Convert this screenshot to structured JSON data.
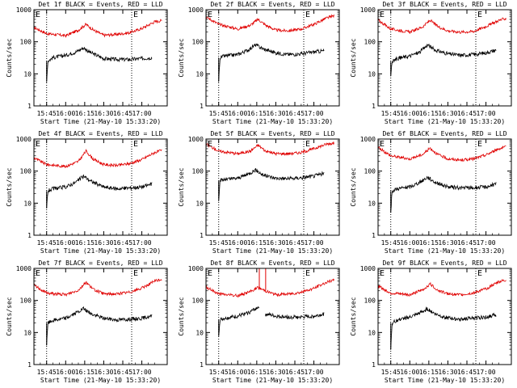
{
  "figure": {
    "colors": {
      "events": "#000000",
      "lld": "#e00000",
      "axis": "#000000",
      "guide": "#000000"
    }
  },
  "chart_data": [
    {
      "type": "line",
      "title": "Det 1f BLACK = Events, RED = LLD",
      "xlabel": "Start Time (21-May-10 15:33:20)",
      "ylabel": "Counts/sec",
      "y_log": true,
      "ylim": [
        1,
        1000
      ],
      "y_ticks": [
        "1",
        "10",
        "100",
        "1000"
      ],
      "x_range": [
        "15:35",
        "17:20"
      ],
      "x_ticks": [
        "15:45",
        "16:00",
        "16:15",
        "16:30",
        "16:45",
        "17:00"
      ],
      "markers": [
        {
          "label": "E",
          "at": "15:35"
        },
        {
          "label": "E",
          "at": "16:52"
        }
      ],
      "guides": [
        "15:45",
        "16:52"
      ],
      "series": [
        {
          "role": "lld",
          "x": [
            "15:35",
            "15:45",
            "16:00",
            "16:10",
            "16:16",
            "16:22",
            "16:30",
            "16:40",
            "16:50",
            "17:00",
            "17:10",
            "17:16"
          ],
          "values": [
            280,
            180,
            155,
            230,
            350,
            230,
            160,
            170,
            190,
            260,
            420,
            460
          ]
        },
        {
          "role": "events",
          "x": [
            "15:45",
            "15:46",
            "15:50",
            "16:00",
            "16:08",
            "16:14",
            "16:20",
            "16:30",
            "16:40",
            "16:50",
            "17:00",
            "17:08"
          ],
          "values": [
            6,
            25,
            32,
            38,
            48,
            65,
            45,
            30,
            28,
            28,
            30,
            32
          ]
        }
      ]
    },
    {
      "type": "line",
      "title": "Det 2f BLACK = Events, RED = LLD",
      "xlabel": "Start Time (21-May-10 15:33:20)",
      "ylabel": "Counts/sec",
      "y_log": true,
      "ylim": [
        1,
        1000
      ],
      "y_ticks": [
        "1",
        "10",
        "100",
        "1000"
      ],
      "x_range": [
        "15:35",
        "17:20"
      ],
      "x_ticks": [
        "15:45",
        "16:00",
        "16:15",
        "16:30",
        "16:45",
        "17:00"
      ],
      "markers": [
        {
          "label": "E",
          "at": "15:35"
        },
        {
          "label": "E",
          "at": "16:52"
        }
      ],
      "guides": [
        "15:45",
        "16:52"
      ],
      "series": [
        {
          "role": "lld",
          "x": [
            "15:35",
            "15:45",
            "16:00",
            "16:10",
            "16:16",
            "16:22",
            "16:30",
            "16:40",
            "16:50",
            "17:00",
            "17:10",
            "17:16"
          ],
          "values": [
            600,
            350,
            250,
            330,
            500,
            330,
            230,
            220,
            250,
            350,
            550,
            650
          ]
        },
        {
          "role": "events",
          "x": [
            "15:45",
            "15:46",
            "15:50",
            "16:00",
            "16:08",
            "16:14",
            "16:20",
            "16:30",
            "16:40",
            "16:50",
            "17:00",
            "17:08"
          ],
          "values": [
            6,
            32,
            36,
            40,
            55,
            80,
            60,
            45,
            40,
            42,
            48,
            52
          ]
        }
      ]
    },
    {
      "type": "line",
      "title": "Det 3f BLACK = Events, RED = LLD",
      "xlabel": "Start Time (21-May-10 15:33:20)",
      "ylabel": "Counts/sec",
      "y_log": true,
      "ylim": [
        1,
        1000
      ],
      "y_ticks": [
        "1",
        "10",
        "100",
        "1000"
      ],
      "x_range": [
        "15:35",
        "17:20"
      ],
      "x_ticks": [
        "15:45",
        "16:00",
        "16:15",
        "16:30",
        "16:45",
        "17:00"
      ],
      "markers": [
        {
          "label": "E",
          "at": "15:35"
        },
        {
          "label": "E",
          "at": "16:52"
        }
      ],
      "guides": [
        "15:45",
        "16:52"
      ],
      "series": [
        {
          "role": "lld",
          "x": [
            "15:35",
            "15:45",
            "16:00",
            "16:10",
            "16:16",
            "16:22",
            "16:30",
            "16:40",
            "16:50",
            "17:00",
            "17:10",
            "17:16"
          ],
          "values": [
            480,
            250,
            200,
            290,
            470,
            300,
            220,
            200,
            210,
            300,
            460,
            540
          ]
        },
        {
          "role": "events",
          "x": [
            "15:45",
            "15:46",
            "15:50",
            "16:00",
            "16:08",
            "16:14",
            "16:20",
            "16:30",
            "16:40",
            "16:50",
            "17:00",
            "17:08"
          ],
          "values": [
            9,
            24,
            30,
            36,
            48,
            80,
            55,
            42,
            38,
            40,
            45,
            55
          ]
        }
      ]
    },
    {
      "type": "line",
      "title": "Det 4f BLACK = Events, RED = LLD",
      "xlabel": "Start Time (21-May-10 15:33:20)",
      "ylabel": "Counts/sec",
      "y_log": true,
      "ylim": [
        1,
        1000
      ],
      "y_ticks": [
        "1",
        "10",
        "100",
        "1000"
      ],
      "x_range": [
        "15:35",
        "17:20"
      ],
      "x_ticks": [
        "15:45",
        "16:00",
        "16:15",
        "16:30",
        "16:45",
        "17:00"
      ],
      "markers": [
        {
          "label": "E",
          "at": "15:35"
        },
        {
          "label": "E",
          "at": "16:52"
        }
      ],
      "guides": [
        "15:45",
        "16:52"
      ],
      "series": [
        {
          "role": "lld",
          "x": [
            "15:35",
            "15:45",
            "16:00",
            "16:10",
            "16:16",
            "16:22",
            "16:30",
            "16:40",
            "16:50",
            "17:00",
            "17:10",
            "17:16"
          ],
          "values": [
            260,
            160,
            140,
            200,
            420,
            230,
            160,
            150,
            170,
            230,
            380,
            440
          ]
        },
        {
          "role": "events",
          "x": [
            "15:45",
            "15:46",
            "15:50",
            "16:00",
            "16:08",
            "16:14",
            "16:20",
            "16:30",
            "16:40",
            "16:50",
            "17:00",
            "17:08"
          ],
          "values": [
            7,
            24,
            28,
            32,
            45,
            70,
            48,
            32,
            28,
            30,
            32,
            40
          ]
        }
      ]
    },
    {
      "type": "line",
      "title": "Det 5f BLACK = Events, RED = LLD",
      "xlabel": "Start Time (21-May-10 15:33:20)",
      "ylabel": "Counts/sec",
      "y_log": true,
      "ylim": [
        1,
        1000
      ],
      "y_ticks": [
        "1",
        "10",
        "100",
        "1000"
      ],
      "x_range": [
        "15:35",
        "17:20"
      ],
      "x_ticks": [
        "15:45",
        "16:00",
        "16:15",
        "16:30",
        "16:45",
        "17:00"
      ],
      "markers": [
        {
          "label": "E",
          "at": "15:35"
        },
        {
          "label": "E",
          "at": "16:52"
        }
      ],
      "guides": [
        "15:45",
        "16:52"
      ],
      "series": [
        {
          "role": "lld",
          "x": [
            "15:35",
            "15:45",
            "16:00",
            "16:10",
            "16:16",
            "16:22",
            "16:30",
            "16:40",
            "16:50",
            "17:00",
            "17:10",
            "17:16"
          ],
          "values": [
            700,
            420,
            350,
            420,
            650,
            420,
            350,
            350,
            380,
            500,
            700,
            750
          ]
        },
        {
          "role": "events",
          "x": [
            "15:45",
            "15:46",
            "15:50",
            "16:00",
            "16:08",
            "16:14",
            "16:20",
            "16:30",
            "16:40",
            "16:50",
            "17:00",
            "17:08"
          ],
          "values": [
            13,
            50,
            55,
            60,
            80,
            110,
            75,
            60,
            58,
            62,
            70,
            85
          ]
        }
      ]
    },
    {
      "type": "line",
      "title": "Det 6f BLACK = Events, RED = LLD",
      "xlabel": "Start Time (21-May-10 15:33:20)",
      "ylabel": "Counts/sec",
      "y_log": true,
      "ylim": [
        1,
        1000
      ],
      "y_ticks": [
        "1",
        "10",
        "100",
        "1000"
      ],
      "x_range": [
        "15:35",
        "17:20"
      ],
      "x_ticks": [
        "15:45",
        "16:00",
        "16:15",
        "16:30",
        "16:45",
        "17:00"
      ],
      "markers": [
        {
          "label": "E",
          "at": "15:35"
        },
        {
          "label": "E",
          "at": "16:52"
        }
      ],
      "guides": [
        "15:45",
        "16:52"
      ],
      "series": [
        {
          "role": "lld",
          "x": [
            "15:35",
            "15:45",
            "16:00",
            "16:10",
            "16:16",
            "16:22",
            "16:30",
            "16:40",
            "16:50",
            "17:00",
            "17:10",
            "17:16"
          ],
          "values": [
            550,
            300,
            240,
            330,
            520,
            330,
            240,
            220,
            240,
            320,
            500,
            560
          ]
        },
        {
          "role": "events",
          "x": [
            "15:45",
            "15:46",
            "15:50",
            "16:00",
            "16:08",
            "16:14",
            "16:20",
            "16:30",
            "16:40",
            "16:50",
            "17:00",
            "17:08"
          ],
          "values": [
            5,
            24,
            28,
            32,
            45,
            65,
            45,
            32,
            30,
            30,
            32,
            40
          ]
        }
      ]
    },
    {
      "type": "line",
      "title": "Det 7f BLACK = Events, RED = LLD",
      "xlabel": "Start Time (21-May-10 15:33:20)",
      "ylabel": "Counts/sec",
      "y_log": true,
      "ylim": [
        1,
        1000
      ],
      "y_ticks": [
        "1",
        "10",
        "100",
        "1000"
      ],
      "x_range": [
        "15:35",
        "17:20"
      ],
      "x_ticks": [
        "15:45",
        "16:00",
        "16:15",
        "16:30",
        "16:45",
        "17:00"
      ],
      "markers": [
        {
          "label": "E",
          "at": "15:35"
        },
        {
          "label": "E",
          "at": "16:52"
        }
      ],
      "guides": [
        "15:45",
        "16:52"
      ],
      "series": [
        {
          "role": "lld",
          "x": [
            "15:35",
            "15:45",
            "16:00",
            "16:10",
            "16:16",
            "16:22",
            "16:30",
            "16:40",
            "16:50",
            "17:00",
            "17:10",
            "17:16"
          ],
          "values": [
            300,
            170,
            150,
            210,
            370,
            220,
            160,
            160,
            180,
            240,
            400,
            460
          ]
        },
        {
          "role": "events",
          "x": [
            "15:45",
            "15:46",
            "15:50",
            "16:00",
            "16:08",
            "16:14",
            "16:20",
            "16:30",
            "16:40",
            "16:50",
            "17:00",
            "17:08"
          ],
          "values": [
            4,
            20,
            24,
            28,
            40,
            55,
            38,
            28,
            25,
            26,
            28,
            32
          ]
        }
      ]
    },
    {
      "type": "line",
      "title": "Det 8f BLACK = Events, RED = LLD",
      "xlabel": "Start Time (21-May-10 15:33:20)",
      "ylabel": "Counts/sec",
      "y_log": true,
      "ylim": [
        1,
        1000
      ],
      "y_ticks": [
        "1",
        "10",
        "100",
        "1000"
      ],
      "x_range": [
        "15:35",
        "17:20"
      ],
      "x_ticks": [
        "15:45",
        "16:00",
        "16:15",
        "16:30",
        "16:45",
        "17:00"
      ],
      "markers": [
        {
          "label": "E",
          "at": "15:35"
        },
        {
          "label": "E",
          "at": "16:52"
        }
      ],
      "guides": [
        "15:45",
        "16:52"
      ],
      "spikes": [
        "16:17",
        "16:22"
      ],
      "series": [
        {
          "role": "lld",
          "x": [
            "15:35",
            "15:45",
            "16:00",
            "16:10",
            "16:16",
            "16:22",
            "16:30",
            "16:40",
            "16:50",
            "17:00",
            "17:10",
            "17:16"
          ],
          "values": [
            260,
            160,
            140,
            190,
            250,
            200,
            150,
            160,
            180,
            240,
            370,
            430
          ]
        },
        {
          "role": "events",
          "x": [
            "15:45",
            "15:46",
            "15:50",
            "16:00",
            "16:08",
            "16:14",
            "16:17"
          ],
          "values": [
            8,
            25,
            28,
            32,
            40,
            55,
            65
          ]
        },
        {
          "role": "events",
          "x": [
            "16:22",
            "16:30",
            "16:40",
            "16:50",
            "17:00",
            "17:08"
          ],
          "values": [
            38,
            32,
            30,
            30,
            32,
            38
          ]
        }
      ]
    },
    {
      "type": "line",
      "title": "Det 9f BLACK = Events, RED = LLD",
      "xlabel": "Start Time (21-May-10 15:33:20)",
      "ylabel": "Counts/sec",
      "y_log": true,
      "ylim": [
        1,
        1000
      ],
      "y_ticks": [
        "1",
        "10",
        "100",
        "1000"
      ],
      "x_range": [
        "15:35",
        "17:20"
      ],
      "x_ticks": [
        "15:45",
        "16:00",
        "16:15",
        "16:30",
        "16:45",
        "17:00"
      ],
      "markers": [
        {
          "label": "E",
          "at": "15:35"
        },
        {
          "label": "E",
          "at": "16:52"
        }
      ],
      "guides": [
        "15:45",
        "16:52"
      ],
      "series": [
        {
          "role": "lld",
          "x": [
            "15:35",
            "15:45",
            "16:00",
            "16:10",
            "16:16",
            "16:22",
            "16:30",
            "16:40",
            "16:50",
            "17:00",
            "17:10",
            "17:16"
          ],
          "values": [
            280,
            170,
            150,
            210,
            330,
            210,
            160,
            150,
            170,
            230,
            380,
            430
          ]
        },
        {
          "role": "events",
          "x": [
            "15:45",
            "15:46",
            "15:50",
            "16:00",
            "16:08",
            "16:14",
            "16:20",
            "16:30",
            "16:40",
            "16:50",
            "17:00",
            "17:08"
          ],
          "values": [
            3,
            20,
            24,
            30,
            40,
            55,
            38,
            28,
            26,
            28,
            30,
            36
          ]
        }
      ]
    }
  ]
}
